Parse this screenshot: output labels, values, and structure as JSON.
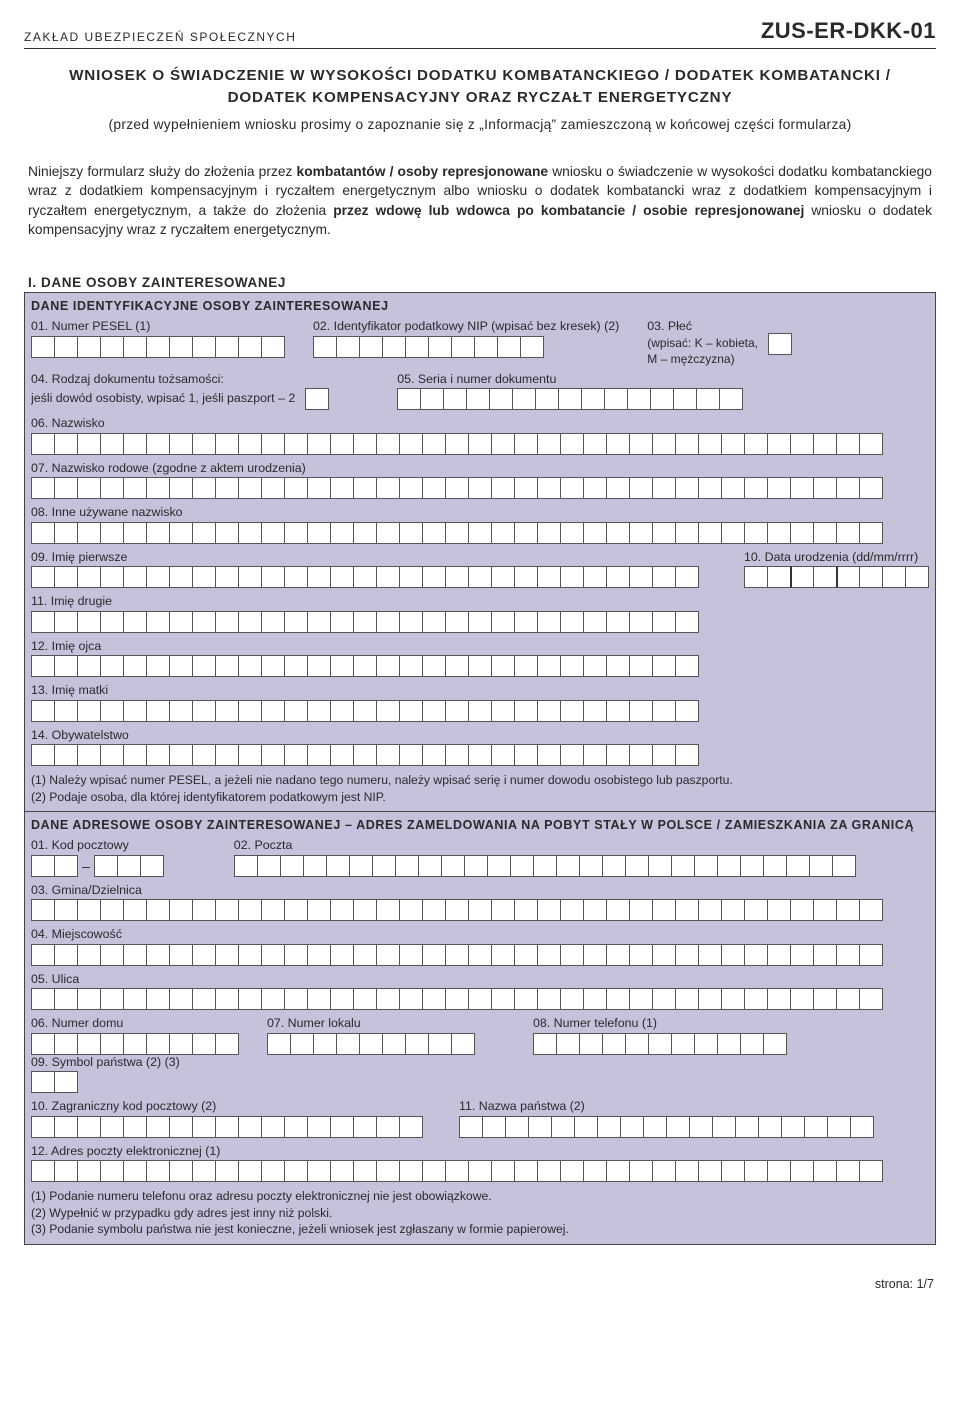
{
  "header": {
    "org": "ZAKŁAD UBEZPIECZEŃ SPOŁECZNYCH",
    "form_code": "ZUS-ER-DKK-01"
  },
  "title_line1": "WNIOSEK O ŚWIADCZENIE W WYSOKOŚCI DODATKU KOMBATANCKIEGO / DODATEK KOMBATANCKI /",
  "title_line2": "DODATEK KOMPENSACYJNY ORAZ RYCZAŁT ENERGETYCZNY",
  "subtitle": "(przed wypełnieniem wniosku prosimy o zapoznanie się z „Informacją” zamieszczoną w końcowej części formularza)",
  "intro": {
    "p1a": "Niniejszy formularz służy do złożenia przez ",
    "p1b": "kombatantów / osoby represjonowane",
    "p1c": " wniosku o świadczenie w wysokości dodatku kombatanckiego wraz z dodatkiem kompensacyjnym i ryczałtem energetycznym albo wniosku o dodatek kombatancki wraz z dodatkiem kompensacyjnym i ryczałtem energetycznym, a także do złożenia ",
    "p1d": "przez wdowę lub wdowca po kombatancie / osobie represjonowanej",
    "p1e": " wniosku o dodatek kompensacyjny wraz z ryczałtem energetycznym."
  },
  "section1": {
    "heading": "I. DANE OSOBY ZAINTERESOWANEJ",
    "block1": {
      "heading": "DANE IDENTYFIKACYJNE OSOBY ZAINTERESOWANEJ",
      "f01": "01. Numer PESEL (1)",
      "f02": "02. Identyfikator podatkowy NIP (wpisać bez kresek) (2)",
      "f03a": "03. Płeć",
      "f03b": "(wpisać: K – kobieta,",
      "f03c": "M – mężczyzna)",
      "f04a": "04. Rodzaj dokumentu tożsamości:",
      "f04b": "jeśli dowód osobisty, wpisać 1, jeśli paszport – 2",
      "f05": "05. Seria i numer dokumentu",
      "f06": "06. Nazwisko",
      "f07": "07. Nazwisko rodowe (zgodne z aktem urodzenia)",
      "f08": "08. Inne używane nazwisko",
      "f09": "09. Imię pierwsze",
      "f10": "10. Data urodzenia (dd/mm/rrrr)",
      "f11": "11. Imię drugie",
      "f12": "12. Imię ojca",
      "f13": "13. Imię matki",
      "f14": "14. Obywatelstwo",
      "note1": "(1) Należy wpisać numer PESEL, a jeżeli nie nadano tego numeru, należy wpisać serię i numer dowodu osobistego lub paszportu.",
      "note2": "(2) Podaje osoba, dla której identyfikatorem podatkowym jest NIP."
    },
    "block2": {
      "heading": "DANE ADRESOWE OSOBY ZAINTERESOWANEJ – ADRES ZAMELDOWANIA NA POBYT STAŁY W POLSCE / ZAMIESZKANIA ZA GRANICĄ",
      "f01": "01. Kod pocztowy",
      "f02": "02. Poczta",
      "f03": "03. Gmina/Dzielnica",
      "f04": "04. Miejscowość",
      "f05": "05. Ulica",
      "f06": "06. Numer domu",
      "f07": "07. Numer lokalu",
      "f08": "08. Numer telefonu (1)",
      "f09": "09. Symbol państwa (2) (3)",
      "f10": "10. Zagraniczny kod pocztowy (2)",
      "f11": "11. Nazwa państwa (2)",
      "f12": "12. Adres poczty elektronicznej (1)",
      "note1": "(1) Podanie numeru telefonu oraz adresu poczty elektronicznej nie jest obowiązkowe.",
      "note2": "(2) Wypełnić w przypadku gdy adres jest inny niż polski.",
      "note3": "(3) Podanie symbolu państwa nie jest konieczne, jeżeli wniosek jest zgłaszany w formie papierowej."
    }
  },
  "footer": "strona: 1/7",
  "style": {
    "block_bg": "#c5c2dc",
    "cell_border": "#555555",
    "text_color": "#2a2a2a"
  }
}
